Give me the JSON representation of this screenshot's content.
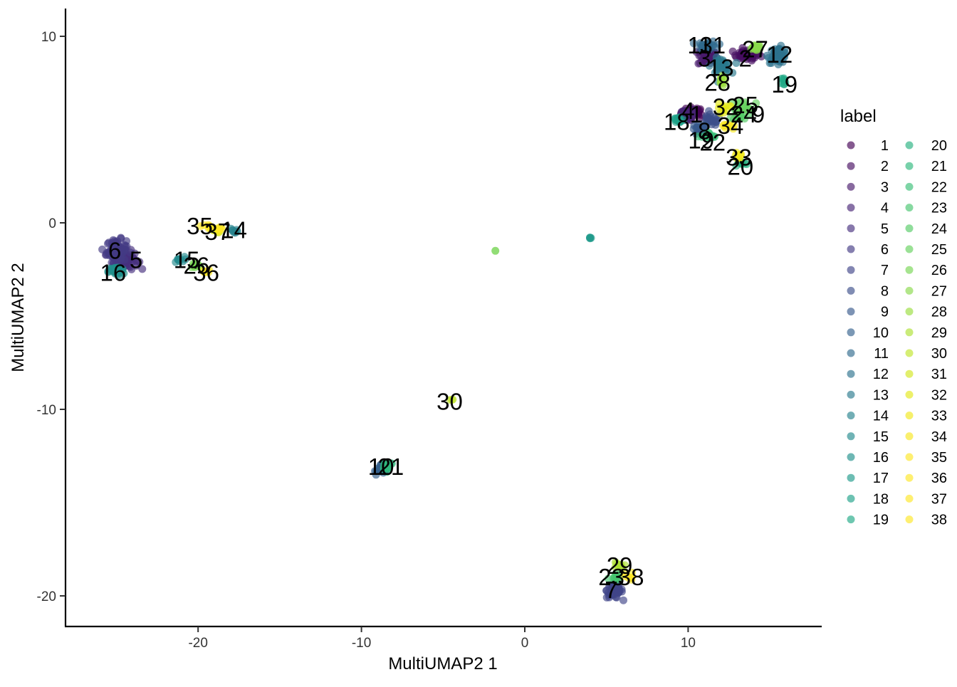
{
  "chart_data": {
    "type": "scatter",
    "xlabel": "MultiUMAP2 1",
    "ylabel": "MultiUMAP2 2",
    "xlim": [
      -28,
      18.5
    ],
    "ylim": [
      -21.8,
      11.5
    ],
    "x_ticks": [
      -20,
      -10,
      0,
      10
    ],
    "y_ticks": [
      10,
      0,
      -10,
      -20
    ],
    "grid": false,
    "legend": {
      "title": "label",
      "placement": "right",
      "columns": [
        [
          "1",
          "2",
          "3",
          "4",
          "5",
          "6",
          "7",
          "8",
          "9",
          "10",
          "11",
          "12",
          "13",
          "14",
          "15",
          "16",
          "17",
          "18",
          "19"
        ],
        [
          "20",
          "21",
          "22",
          "23",
          "24",
          "25",
          "26",
          "27",
          "28",
          "29",
          "30",
          "31",
          "32",
          "33",
          "34",
          "35",
          "36",
          "37",
          "38"
        ]
      ]
    },
    "colors": {
      "1": "#440154",
      "2": "#470E61",
      "3": "#481A6C",
      "4": "#482576",
      "5": "#46307E",
      "6": "#433A84",
      "7": "#404588",
      "8": "#3C4F8A",
      "9": "#38598C",
      "10": "#34618D",
      "11": "#306A8E",
      "12": "#2D728E",
      "13": "#2A7A8E",
      "14": "#27828E",
      "15": "#248A8D",
      "16": "#21918C",
      "17": "#1F9A8A",
      "18": "#1FA188",
      "19": "#21A985",
      "20": "#26B07F",
      "21": "#2EB87C",
      "22": "#39BE76",
      "23": "#46C56F",
      "24": "#55CB66",
      "25": "#65D15E",
      "26": "#76D553",
      "27": "#88D949",
      "28": "#9ADD3E",
      "29": "#ADE033",
      "30": "#C0E52A",
      "31": "#D2E71F",
      "32": "#E4E81A",
      "33": "#F1E81C",
      "34": "#F8E621",
      "35": "#FDE725",
      "36": "#FDE725",
      "37": "#FDE725",
      "38": "#FDE725"
    },
    "clusters": [
      {
        "label": "1",
        "x": 10.3,
        "y": 5.9,
        "sx": 0.6,
        "sy": 0.25,
        "n": 40
      },
      {
        "label": "2",
        "x": 13.6,
        "y": 9.0,
        "sx": 0.7,
        "sy": 0.25,
        "n": 40
      },
      {
        "label": "3",
        "x": 11.2,
        "y": 8.9,
        "sx": 0.5,
        "sy": 0.4,
        "n": 45
      },
      {
        "label": "4",
        "x": 9.9,
        "y": 5.8,
        "sx": 0.5,
        "sy": 0.3,
        "n": 30
      },
      {
        "label": "5",
        "x": -24.4,
        "y": -2.0,
        "sx": 0.6,
        "sy": 0.4,
        "n": 60
      },
      {
        "label": "6",
        "x": -25.0,
        "y": -1.5,
        "sx": 0.5,
        "sy": 0.5,
        "n": 90
      },
      {
        "label": "7",
        "x": 5.5,
        "y": -19.7,
        "sx": 0.4,
        "sy": 0.35,
        "n": 60
      },
      {
        "label": "8",
        "x": 11.4,
        "y": 5.5,
        "sx": 0.5,
        "sy": 0.25,
        "n": 25
      },
      {
        "label": "9",
        "x": 10.7,
        "y": 5.0,
        "sx": 0.4,
        "sy": 0.25,
        "n": 25
      },
      {
        "label": "10",
        "x": -8.7,
        "y": -13.2,
        "sx": 0.3,
        "sy": 0.2,
        "n": 30
      },
      {
        "label": "11",
        "x": 11.2,
        "y": 9.5,
        "sx": 0.5,
        "sy": 0.2,
        "n": 30
      },
      {
        "label": "12",
        "x": 15.5,
        "y": 9.0,
        "sx": 0.5,
        "sy": 0.35,
        "n": 45
      },
      {
        "label": "13",
        "x": 12.0,
        "y": 8.4,
        "sx": 0.5,
        "sy": 0.35,
        "n": 35
      },
      {
        "label": "14",
        "x": -17.8,
        "y": -0.4,
        "sx": 0.2,
        "sy": 0.1,
        "n": 8
      },
      {
        "label": "15",
        "x": -21.2,
        "y": -2.0,
        "sx": 0.3,
        "sy": 0.15,
        "n": 10
      },
      {
        "label": "16",
        "x": -25.0,
        "y": -2.6,
        "sx": 0.4,
        "sy": 0.2,
        "n": 40
      },
      {
        "label": "17",
        "x": 4.0,
        "y": -0.8,
        "sx": 0.05,
        "sy": 0.05,
        "n": 4
      },
      {
        "label": "18",
        "x": 9.4,
        "y": 5.5,
        "sx": 0.3,
        "sy": 0.2,
        "n": 15
      },
      {
        "label": "19",
        "x": 15.9,
        "y": 7.6,
        "sx": 0.2,
        "sy": 0.2,
        "n": 8
      },
      {
        "label": "20",
        "x": 13.2,
        "y": 3.2,
        "sx": 0.3,
        "sy": 0.15,
        "n": 10
      },
      {
        "label": "21",
        "x": -8.4,
        "y": -13.0,
        "sx": 0.3,
        "sy": 0.2,
        "n": 20
      },
      {
        "label": "22",
        "x": 11.3,
        "y": 4.6,
        "sx": 0.4,
        "sy": 0.2,
        "n": 15
      },
      {
        "label": "23",
        "x": 5.5,
        "y": -19.0,
        "sx": 0.3,
        "sy": 0.2,
        "n": 12
      },
      {
        "label": "24",
        "x": 13.2,
        "y": 5.8,
        "sx": 0.4,
        "sy": 0.25,
        "n": 15
      },
      {
        "label": "25",
        "x": 13.5,
        "y": 6.3,
        "sx": 0.5,
        "sy": 0.25,
        "n": 15
      },
      {
        "label": "26",
        "x": -20.2,
        "y": -2.3,
        "sx": 0.3,
        "sy": 0.15,
        "n": 10
      },
      {
        "label": "27",
        "x": 14.1,
        "y": 9.4,
        "sx": 0.4,
        "sy": 0.2,
        "n": 15
      },
      {
        "label": "28",
        "x": 12.0,
        "y": 7.6,
        "sx": 0.2,
        "sy": 0.2,
        "n": 10
      },
      {
        "label": "29",
        "x": 5.7,
        "y": -18.4,
        "sx": 0.3,
        "sy": 0.2,
        "n": 10
      },
      {
        "label": "30",
        "x": -4.5,
        "y": -9.5,
        "sx": 0.1,
        "sy": 0.1,
        "n": 3
      },
      {
        "label": "31",
        "x": -19.0,
        "y": -0.4,
        "sx": 0.3,
        "sy": 0.1,
        "n": 10
      },
      {
        "label": "32",
        "x": 12.2,
        "y": 6.1,
        "sx": 0.3,
        "sy": 0.25,
        "n": 12
      },
      {
        "label": "33",
        "x": 13.0,
        "y": 3.6,
        "sx": 0.3,
        "sy": 0.15,
        "n": 8
      },
      {
        "label": "34",
        "x": 12.5,
        "y": 5.2,
        "sx": 0.3,
        "sy": 0.2,
        "n": 10
      },
      {
        "label": "35",
        "x": -19.5,
        "y": -0.2,
        "sx": 0.3,
        "sy": 0.1,
        "n": 8
      },
      {
        "label": "36",
        "x": -19.5,
        "y": -2.6,
        "sx": 0.2,
        "sy": 0.1,
        "n": 6
      },
      {
        "label": "37",
        "x": -18.7,
        "y": -0.3,
        "sx": 0.2,
        "sy": 0.1,
        "n": 6
      },
      {
        "label": "38",
        "x": 6.4,
        "y": -19.0,
        "sx": 0.2,
        "sy": 0.2,
        "n": 8
      }
    ],
    "extra_points": [
      {
        "label": "26",
        "x": -1.8,
        "y": -1.5
      }
    ],
    "cluster_labels": [
      {
        "text": "11",
        "x": 10.7,
        "y": 9.5
      },
      {
        "text": "31",
        "x": 11.5,
        "y": 9.5
      },
      {
        "text": "3",
        "x": 11.0,
        "y": 8.8
      },
      {
        "text": "13",
        "x": 12.0,
        "y": 8.3
      },
      {
        "text": "2",
        "x": 13.5,
        "y": 8.8
      },
      {
        "text": "27",
        "x": 14.1,
        "y": 9.3
      },
      {
        "text": "12",
        "x": 15.6,
        "y": 9.0
      },
      {
        "text": "28",
        "x": 11.8,
        "y": 7.5
      },
      {
        "text": "19",
        "x": 15.9,
        "y": 7.4
      },
      {
        "text": "32",
        "x": 12.3,
        "y": 6.2
      },
      {
        "text": "25",
        "x": 13.5,
        "y": 6.3
      },
      {
        "text": "4",
        "x": 10.0,
        "y": 6.0
      },
      {
        "text": "1",
        "x": 10.5,
        "y": 5.8
      },
      {
        "text": "24",
        "x": 13.4,
        "y": 5.8
      },
      {
        "text": "9",
        "x": 14.3,
        "y": 5.8
      },
      {
        "text": "18",
        "x": 9.3,
        "y": 5.4
      },
      {
        "text": "34",
        "x": 12.6,
        "y": 5.2
      },
      {
        "text": "8",
        "x": 11.0,
        "y": 4.9
      },
      {
        "text": "19",
        "x": 10.8,
        "y": 4.4
      },
      {
        "text": "22",
        "x": 11.5,
        "y": 4.3
      },
      {
        "text": "33",
        "x": 13.1,
        "y": 3.5
      },
      {
        "text": "20",
        "x": 13.2,
        "y": 3.0
      },
      {
        "text": "35",
        "x": -19.9,
        "y": -0.2
      },
      {
        "text": "37",
        "x": -18.8,
        "y": -0.5
      },
      {
        "text": "14",
        "x": -17.8,
        "y": -0.4
      },
      {
        "text": "6",
        "x": -25.1,
        "y": -1.5
      },
      {
        "text": "5",
        "x": -23.8,
        "y": -2.0
      },
      {
        "text": "15",
        "x": -20.7,
        "y": -2.0
      },
      {
        "text": "26",
        "x": -20.1,
        "y": -2.3
      },
      {
        "text": "36",
        "x": -19.5,
        "y": -2.7
      },
      {
        "text": "16",
        "x": -25.2,
        "y": -2.7
      },
      {
        "text": "30",
        "x": -4.6,
        "y": -9.6
      },
      {
        "text": "10",
        "x": -8.8,
        "y": -13.1
      },
      {
        "text": "21",
        "x": -8.2,
        "y": -13.1
      },
      {
        "text": "29",
        "x": 5.8,
        "y": -18.4
      },
      {
        "text": "23",
        "x": 5.3,
        "y": -19.0
      },
      {
        "text": "38",
        "x": 6.5,
        "y": -19.0
      },
      {
        "text": "7",
        "x": 5.3,
        "y": -19.7
      }
    ]
  }
}
